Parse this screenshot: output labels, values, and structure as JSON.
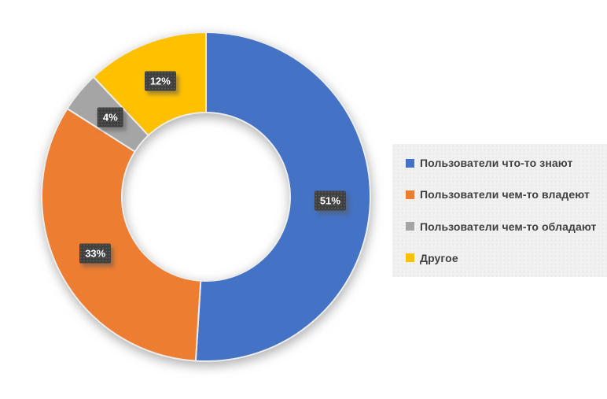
{
  "chart_data": {
    "type": "pie",
    "subtype": "donut",
    "title": "",
    "categories": [
      "Пользователи что-то знают",
      "Пользователи чем-то владеют",
      "Пользователи чем-то обладают",
      "Другое"
    ],
    "values": [
      51,
      33,
      4,
      12
    ],
    "unit": "%",
    "data_labels": [
      "51%",
      "33%",
      "4%",
      "12%"
    ],
    "colors": [
      "#4472C4",
      "#ED7D31",
      "#A5A5A5",
      "#FFC000"
    ],
    "start_angle_deg": 0,
    "direction": "clockwise",
    "hole_ratio": 0.51,
    "legend_position": "right",
    "grid": false
  },
  "legend": {
    "items": [
      {
        "label": "Пользователи что-то знают",
        "color": "#4472C4"
      },
      {
        "label": "Пользователи чем-то владеют",
        "color": "#ED7D31"
      },
      {
        "label": "Пользователи чем-то обладают",
        "color": "#A5A5A5"
      },
      {
        "label": "Другое",
        "color": "#FFC000"
      }
    ]
  },
  "style": {
    "page_bg": "#FFFFFF",
    "legend_bg": "#F1F1F1",
    "legend_text_color": "#404040",
    "data_label_bg": "#3F3F3F",
    "data_label_text": "#FFFFFF",
    "slice_border": "#ECECEC"
  }
}
